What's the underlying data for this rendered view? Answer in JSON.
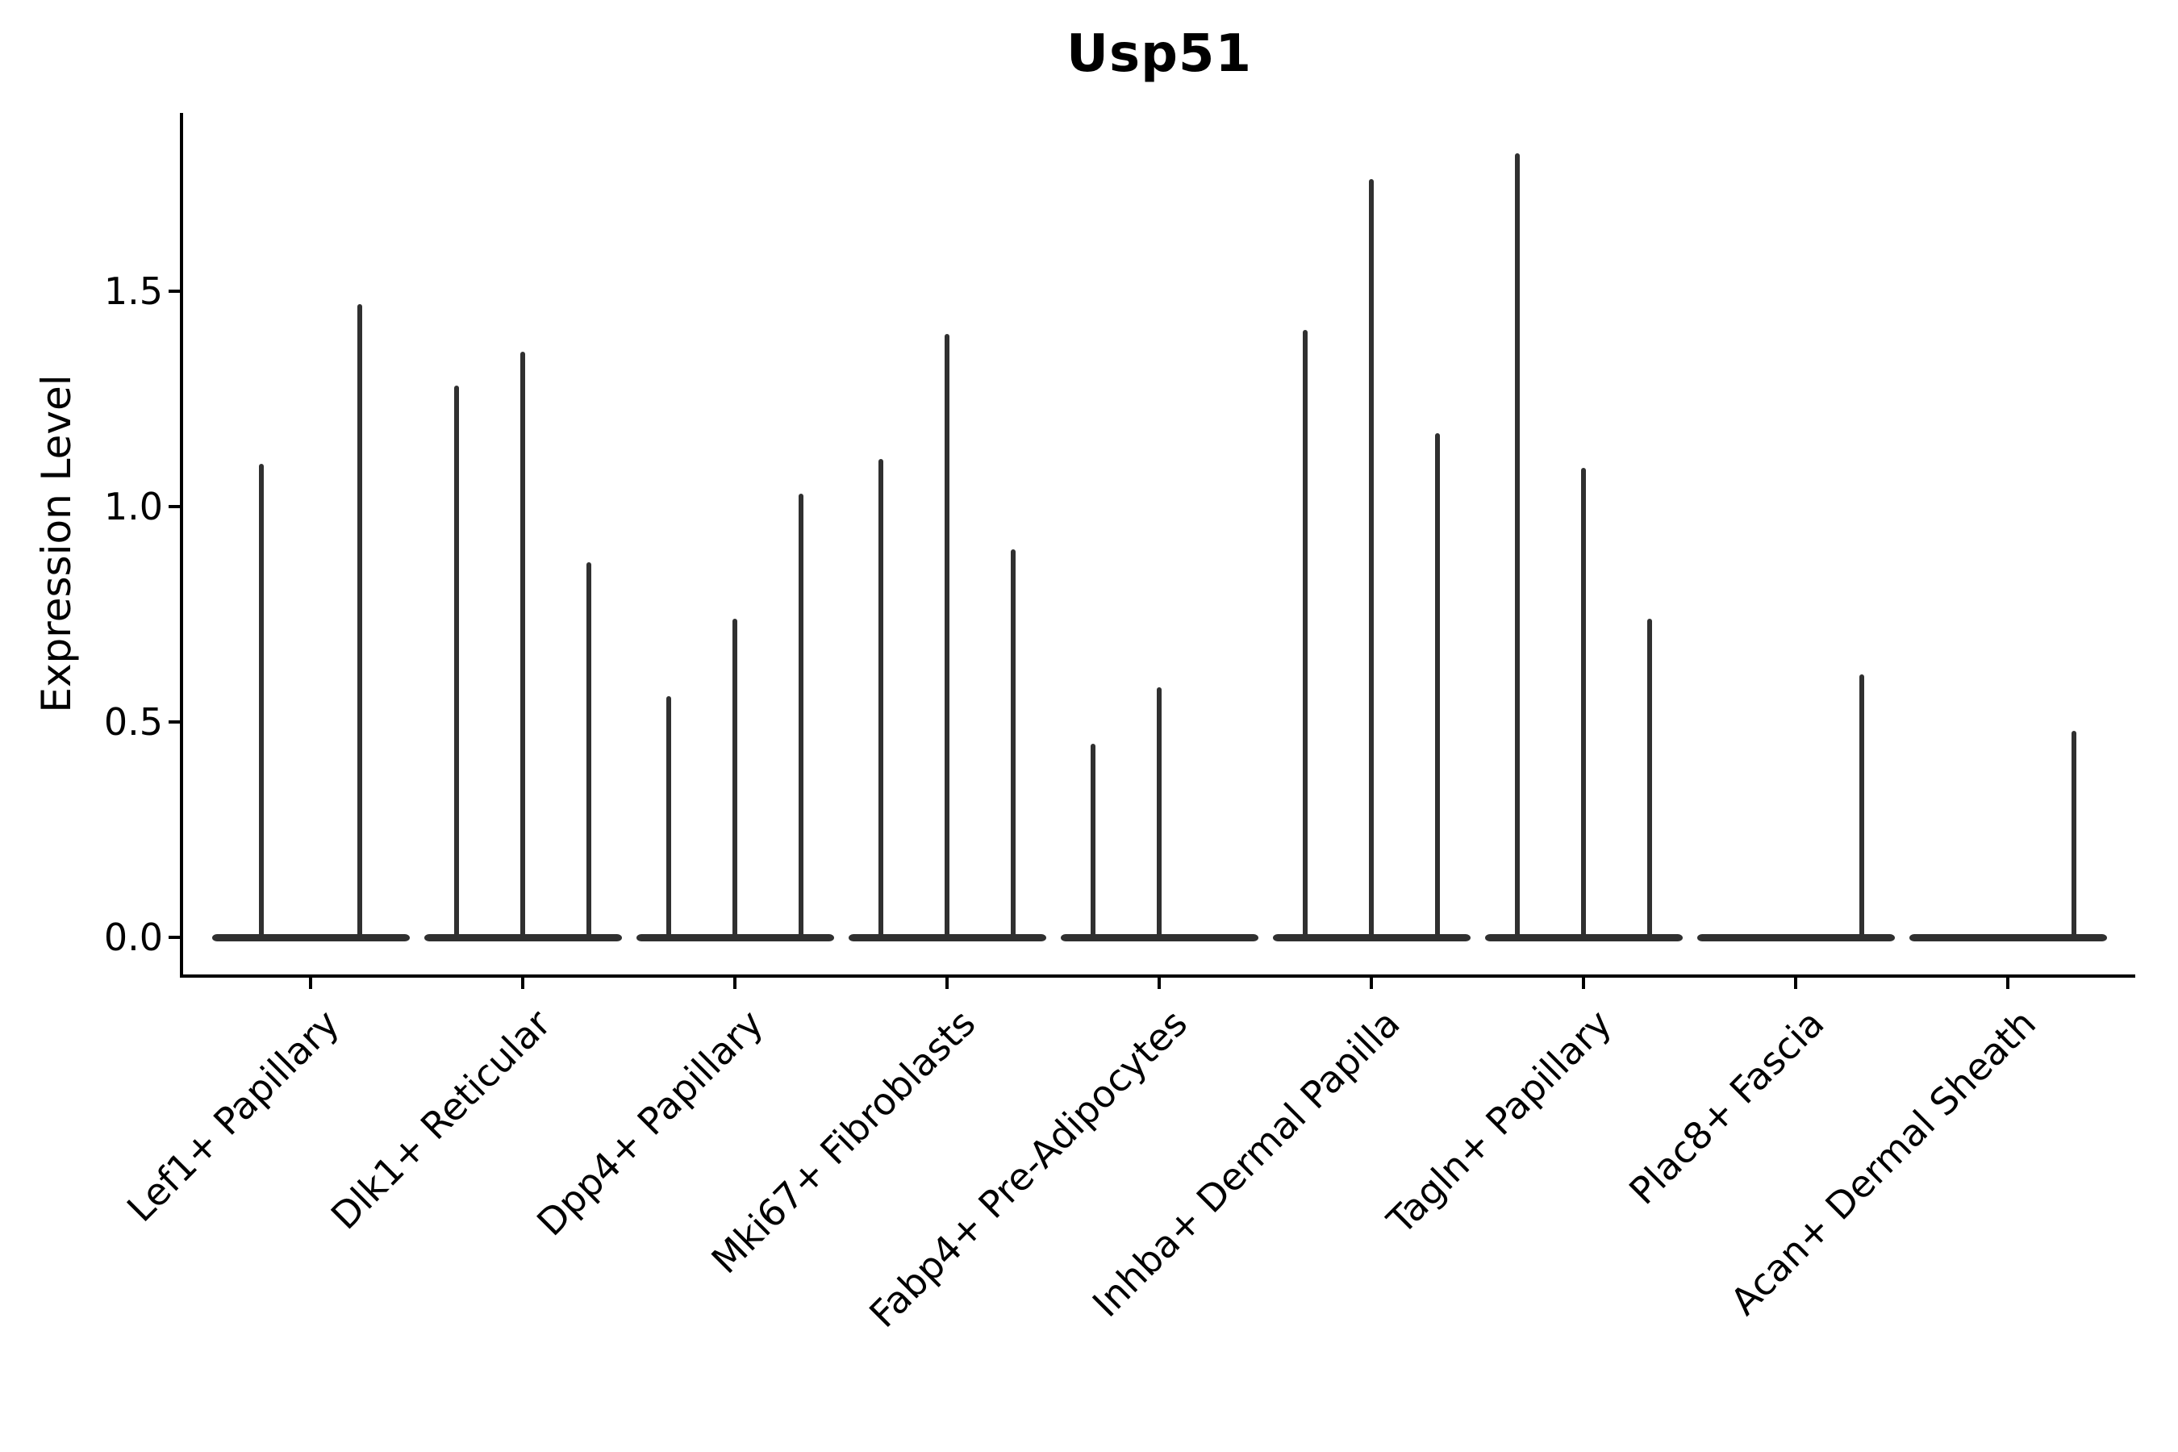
{
  "figure": {
    "background": "#ffffff"
  },
  "chart_data": {
    "type": "violin",
    "title": "Usp51",
    "ylabel": "Expression Level",
    "xlabel": "",
    "yticks": [
      {
        "value": 0.0,
        "label": "0.0"
      },
      {
        "value": 0.5,
        "label": "0.5"
      },
      {
        "value": 1.0,
        "label": "1.0"
      },
      {
        "value": 1.5,
        "label": "1.5"
      }
    ],
    "ylim": [
      -0.09,
      1.91
    ],
    "grid": false,
    "legend": null,
    "violin_color": "#303030",
    "axis_color": "#000000",
    "violins_represent": "single-cell expression distributions: bodies flattened at 0 with thin spikes reaching the maximum expressing cells",
    "categories": [
      "Lef1+ Papillary",
      "Dlk1+ Reticular",
      "Dpp4+ Papillary",
      "Mki67+ Fibroblasts",
      "Fabp4+ Pre-Adipocytes",
      "Inhba+ Dermal Papilla",
      "Tagln+ Papillary",
      "Plac8+ Fascia",
      "Acan+ Dermal Sheath"
    ],
    "groups": [
      {
        "category": "Lef1+ Papillary",
        "violin_max_values": [
          1.1,
          1.47
        ]
      },
      {
        "category": "Dlk1+ Reticular",
        "violin_max_values": [
          1.28,
          1.36,
          0.87
        ]
      },
      {
        "category": "Dpp4+ Papillary",
        "violin_max_values": [
          0.56,
          0.74,
          1.03
        ]
      },
      {
        "category": "Mki67+ Fibroblasts",
        "violin_max_values": [
          1.11,
          1.4,
          0.9
        ]
      },
      {
        "category": "Fabp4+ Pre-Adipocytes",
        "violin_max_values": [
          0.45,
          0.58,
          0.0
        ]
      },
      {
        "category": "Inhba+ Dermal Papilla",
        "violin_max_values": [
          1.41,
          1.76,
          1.17
        ]
      },
      {
        "category": "Tagln+ Papillary",
        "violin_max_values": [
          1.82,
          1.09,
          0.74
        ]
      },
      {
        "category": "Plac8+ Fascia",
        "violin_max_values": [
          0.0,
          0.0,
          0.61
        ]
      },
      {
        "category": "Acan+ Dermal Sheath",
        "violin_max_values": [
          0.0,
          0.0,
          0.48
        ]
      }
    ]
  }
}
